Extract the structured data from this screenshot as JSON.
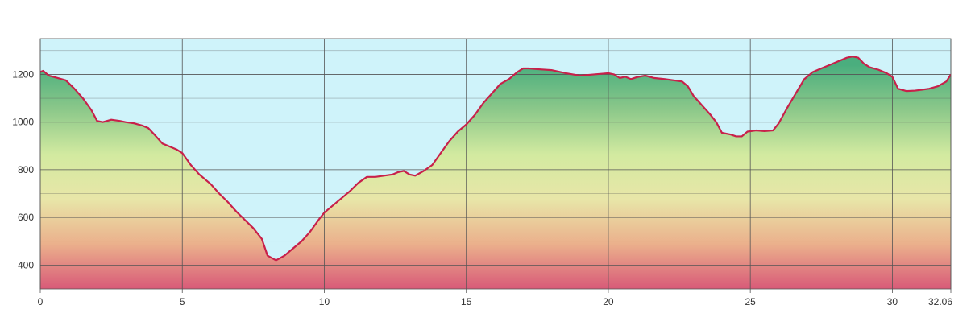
{
  "chart_data": {
    "type": "area",
    "title": "",
    "xlabel": "",
    "ylabel": "",
    "xlim": [
      0,
      32.06
    ],
    "ylim": [
      300,
      1350
    ],
    "x_ticks": [
      0,
      5,
      10,
      15,
      20,
      25,
      30,
      32.06
    ],
    "x_tick_labels": [
      "0",
      "5",
      "10",
      "15",
      "20",
      "25",
      "30",
      "32.06"
    ],
    "y_ticks": [
      400,
      600,
      800,
      1000,
      1200
    ],
    "y_tick_labels": [
      "400",
      "600",
      "800",
      "1000",
      "1200"
    ],
    "grid": true,
    "legend": "none",
    "colors": {
      "line": "#c8204a",
      "sky": "#cff3fa",
      "grid": "#555555",
      "gradient": [
        "#d85a78",
        "#ebb08c",
        "#e8e6a8",
        "#d2eaa0",
        "#8cc88a",
        "#4aae7e"
      ]
    },
    "series": [
      {
        "x": [
          0,
          0.1,
          0.3,
          0.6,
          0.9,
          1.2,
          1.5,
          1.8,
          2.0,
          2.2,
          2.5,
          2.8,
          3.0,
          3.3,
          3.6,
          3.8,
          4.0,
          4.3,
          4.5,
          4.8,
          5.0,
          5.3,
          5.6,
          6.0,
          6.3,
          6.6,
          6.9,
          7.2,
          7.5,
          7.8,
          8.0,
          8.3,
          8.6,
          8.9,
          9.2,
          9.5,
          9.8,
          10.0,
          10.3,
          10.6,
          10.9,
          11.2,
          11.5,
          11.8,
          12.1,
          12.4,
          12.6,
          12.8,
          13.0,
          13.2,
          13.5,
          13.8,
          14.1,
          14.4,
          14.7,
          15.0,
          15.3,
          15.6,
          15.9,
          16.2,
          16.5,
          16.8,
          17.0,
          17.2,
          17.5,
          18.0,
          18.5,
          19.0,
          19.5,
          20.0,
          20.2,
          20.4,
          20.6,
          20.8,
          21.0,
          21.3,
          21.6,
          22.0,
          22.3,
          22.6,
          22.8,
          23.0,
          23.3,
          23.6,
          23.8,
          24.0,
          24.3,
          24.5,
          24.7,
          24.9,
          25.2,
          25.5,
          25.8,
          26.0,
          26.3,
          26.6,
          26.9,
          27.2,
          27.5,
          27.8,
          28.1,
          28.4,
          28.6,
          28.8,
          29.0,
          29.2,
          29.5,
          29.8,
          30.0,
          30.2,
          30.5,
          30.8,
          31.0,
          31.3,
          31.6,
          31.9,
          32.06
        ],
        "values": [
          1210,
          1215,
          1195,
          1185,
          1175,
          1140,
          1100,
          1050,
          1005,
          1000,
          1010,
          1005,
          1000,
          995,
          985,
          975,
          950,
          910,
          900,
          885,
          870,
          820,
          780,
          740,
          700,
          665,
          625,
          590,
          555,
          510,
          440,
          420,
          440,
          470,
          500,
          540,
          590,
          620,
          650,
          680,
          710,
          745,
          770,
          770,
          775,
          780,
          790,
          795,
          780,
          775,
          795,
          820,
          870,
          920,
          960,
          990,
          1030,
          1080,
          1120,
          1160,
          1180,
          1210,
          1225,
          1225,
          1222,
          1218,
          1205,
          1195,
          1200,
          1205,
          1200,
          1185,
          1190,
          1180,
          1188,
          1195,
          1185,
          1180,
          1175,
          1170,
          1150,
          1110,
          1070,
          1030,
          1000,
          955,
          948,
          940,
          940,
          960,
          965,
          962,
          965,
          995,
          1060,
          1120,
          1180,
          1210,
          1225,
          1240,
          1255,
          1270,
          1275,
          1270,
          1245,
          1230,
          1220,
          1205,
          1190,
          1140,
          1130,
          1132,
          1135,
          1140,
          1150,
          1170,
          1200
        ]
      }
    ]
  }
}
